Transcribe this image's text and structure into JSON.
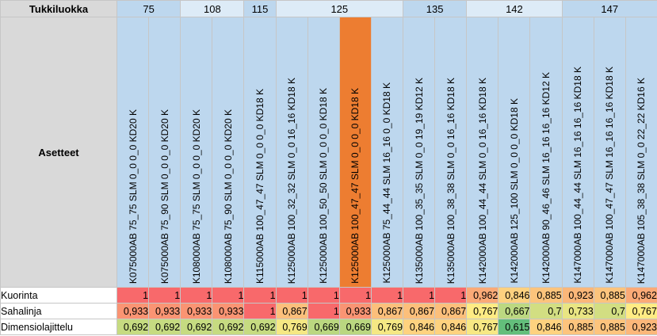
{
  "header": {
    "label": "Tukkiluokka",
    "asetteet_label": "Asetteet"
  },
  "groups": [
    {
      "label": "75",
      "span": 2,
      "color": "#bdd7ee"
    },
    {
      "label": "108",
      "span": 2,
      "color": "#ddebf7"
    },
    {
      "label": "115",
      "span": 1,
      "color": "#bdd7ee"
    },
    {
      "label": "125",
      "span": 4,
      "color": "#ddebf7"
    },
    {
      "label": "135",
      "span": 2,
      "color": "#bdd7ee"
    },
    {
      "label": "142",
      "span": 3,
      "color": "#ddebf7"
    },
    {
      "label": "147",
      "span": 3,
      "color": "#bdd7ee"
    }
  ],
  "columns": [
    {
      "code": "K075000AB 75_75 SLM 0_0 0_0 KD20 K",
      "bg": "#bdd7ee",
      "highlight": false
    },
    {
      "code": "K075000AB 75_90 SLM 0_0 0_0 KD20 K",
      "bg": "#bdd7ee",
      "highlight": false
    },
    {
      "code": "K108000AB 75_75 SLM 0_0 0_0 KD20 K",
      "bg": "#bdd7ee",
      "highlight": false
    },
    {
      "code": "K108000AB 75_90 SLM 0_0 0_0 KD20 K",
      "bg": "#bdd7ee",
      "highlight": false
    },
    {
      "code": "K115000AB 100_47_47 SLM 0_0 0_0 KD18 K",
      "bg": "#bdd7ee",
      "highlight": false
    },
    {
      "code": "K125000AB 100_32_32 SLM 0_0 16_16 KD18 K",
      "bg": "#bdd7ee",
      "highlight": false
    },
    {
      "code": "K125000AB 100_50_50 SLM 0_0 0_0 KD18 K",
      "bg": "#bdd7ee",
      "highlight": false
    },
    {
      "code": "K125000AB 100_47_47 SLM 0_0 0_0 KD18 K",
      "bg": "#ed7d31",
      "highlight": true
    },
    {
      "code": "K125000AB 75_44_44 SLM 16_16 0_0 KD18 K",
      "bg": "#bdd7ee",
      "highlight": false
    },
    {
      "code": "K135000AB 100_35_35 SLM 0_0 19_19 KD12 K",
      "bg": "#bdd7ee",
      "highlight": false
    },
    {
      "code": "K135000AB 100_38_38 SLM 0_0 16_16 KD18 K",
      "bg": "#bdd7ee",
      "highlight": false
    },
    {
      "code": "K142000AB 100_44_44 SLM 0_0 16_16 KD18 K",
      "bg": "#bdd7ee",
      "highlight": false
    },
    {
      "code": "K142000AB 125_100 SLM 0_0 0_0 KD18 K",
      "bg": "#bdd7ee",
      "highlight": false
    },
    {
      "code": "K142000AB 90_46_46 SLM 16_16 16_16 KD12 K",
      "bg": "#bdd7ee",
      "highlight": false
    },
    {
      "code": "K147000AB 100_44_44 SLM 16_16 16_16 KD18 K",
      "bg": "#bdd7ee",
      "highlight": false
    },
    {
      "code": "K147000AB 100_47_47 SLM 16_16 16_16 KD18 K",
      "bg": "#bdd7ee",
      "highlight": false
    },
    {
      "code": "K147000AB 105_38_38 SLM 0_0 22_22 KD16 K",
      "bg": "#bdd7ee",
      "highlight": false
    }
  ],
  "rows": [
    {
      "label": "Kuorinta",
      "values": [
        "1",
        "1",
        "1",
        "1",
        "1",
        "1",
        "1",
        "1",
        "1",
        "1",
        "1",
        "0,962",
        "0,846",
        "0,885",
        "0,923",
        "0,885",
        "0,962"
      ],
      "colors": [
        "#f8696b",
        "#f8696b",
        "#f8696b",
        "#f8696b",
        "#f8696b",
        "#f8696b",
        "#f8696b",
        "#f8696b",
        "#f8696b",
        "#f8696b",
        "#f8696b",
        "#fbaa77",
        "#fdd17f",
        "#fcc47c",
        "#fbb779",
        "#fcc47c",
        "#fbaa77"
      ]
    },
    {
      "label": "Sahalinja",
      "values": [
        "0,933",
        "0,933",
        "0,933",
        "0,933",
        "1",
        "0,867",
        "1",
        "0,933",
        "0,867",
        "0,867",
        "0,867",
        "0,767",
        "0,667",
        "0,7",
        "0,733",
        "0,7",
        "0,767"
      ],
      "colors": [
        "#fa9473",
        "#fa9473",
        "#fa9473",
        "#fa9473",
        "#f8696b",
        "#fcbf7b",
        "#f8696b",
        "#fa9473",
        "#fcbf7b",
        "#fcbf7b",
        "#fcbf7b",
        "#ffeb84",
        "#bcd881",
        "#d2de82",
        "#e9e583",
        "#d2de82",
        "#ffeb84"
      ]
    },
    {
      "label": "Dimensiolajittelu",
      "values": [
        "0,692",
        "0,692",
        "0,692",
        "0,692",
        "0,692",
        "0,769",
        "0,669",
        "0,669",
        "0,769",
        "0,846",
        "0,846",
        "0,767",
        "0,615",
        "0,846",
        "0,885",
        "0,885",
        "0,923"
      ],
      "colors": [
        "#c6db81",
        "#c6db81",
        "#c6db81",
        "#c6db81",
        "#c6db81",
        "#f5e884",
        "#bad780",
        "#bad780",
        "#f5e884",
        "#fed27f",
        "#fed27f",
        "#f7e884",
        "#63be7b",
        "#fed27f",
        "#fdc47d",
        "#fdc47d",
        "#fcb77a"
      ]
    }
  ]
}
